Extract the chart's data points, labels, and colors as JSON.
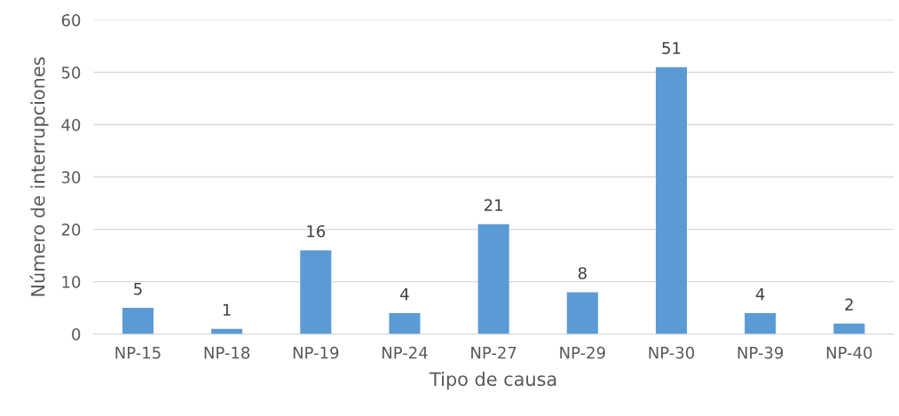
{
  "chart_data": {
    "type": "bar",
    "categories": [
      "NP-15",
      "NP-18",
      "NP-19",
      "NP-24",
      "NP-27",
      "NP-29",
      "NP-30",
      "NP-39",
      "NP-40"
    ],
    "values": [
      5,
      1,
      16,
      4,
      21,
      8,
      51,
      4,
      2
    ],
    "color": "#5b9bd5",
    "xlabel": "Tipo de causa",
    "ylabel": "Número de interrupciones",
    "ylim": [
      0,
      60
    ],
    "yticks": [
      0,
      10,
      20,
      30,
      40,
      50,
      60
    ],
    "grid": "y",
    "data_labels": true,
    "legend": false
  }
}
